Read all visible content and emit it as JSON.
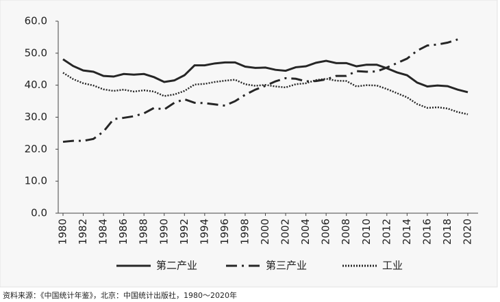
{
  "chart_data": {
    "type": "line",
    "x": [
      1980,
      1981,
      1982,
      1983,
      1984,
      1985,
      1986,
      1987,
      1988,
      1989,
      1990,
      1991,
      1992,
      1993,
      1994,
      1995,
      1996,
      1997,
      1998,
      1999,
      2000,
      2001,
      2002,
      2003,
      2004,
      2005,
      2006,
      2007,
      2008,
      2009,
      2010,
      2011,
      2012,
      2013,
      2014,
      2015,
      2016,
      2017,
      2018,
      2019,
      2020
    ],
    "xlim": [
      1980,
      2020
    ],
    "xticks": [
      1980,
      1982,
      1984,
      1986,
      1988,
      1990,
      1992,
      1994,
      1996,
      1998,
      2000,
      2002,
      2004,
      2006,
      2008,
      2010,
      2012,
      2014,
      2016,
      2018,
      2020
    ],
    "ylim": [
      0,
      60
    ],
    "yticks": [
      {
        "value": 0,
        "label": "0.0"
      },
      {
        "value": 10,
        "label": "10.0"
      },
      {
        "value": 20,
        "label": "20.0"
      },
      {
        "value": 30,
        "label": "30.0"
      },
      {
        "value": 40,
        "label": "40.0"
      },
      {
        "value": 50,
        "label": "50.0"
      },
      {
        "value": 60,
        "label": "60.0"
      }
    ],
    "grid": false,
    "legend": "bottom",
    "series": [
      {
        "name": "第二产业",
        "color": "#262626",
        "dash": "solid",
        "values": [
          48.1,
          46.0,
          44.6,
          44.2,
          42.9,
          42.7,
          43.5,
          43.3,
          43.5,
          42.5,
          41.0,
          41.5,
          43.1,
          46.2,
          46.2,
          46.8,
          47.1,
          47.1,
          45.8,
          45.4,
          45.5,
          44.8,
          44.5,
          45.6,
          45.9,
          47.0,
          47.6,
          46.9,
          46.9,
          45.9,
          46.4,
          46.4,
          45.3,
          44.0,
          43.1,
          40.8,
          39.6,
          39.9,
          39.7,
          38.6,
          37.8
        ]
      },
      {
        "name": "第三产业",
        "color": "#262626",
        "dash": "dashdot",
        "values": [
          22.3,
          22.6,
          22.6,
          23.2,
          25.5,
          29.4,
          29.8,
          30.3,
          31.2,
          32.9,
          32.4,
          34.5,
          35.6,
          34.5,
          34.4,
          34.0,
          33.6,
          35.0,
          37.0,
          38.6,
          39.8,
          41.2,
          42.2,
          42.0,
          41.2,
          41.3,
          41.8,
          42.9,
          42.9,
          44.4,
          44.2,
          44.3,
          45.5,
          46.9,
          48.3,
          50.8,
          52.4,
          52.7,
          53.3,
          54.3,
          null
        ]
      },
      {
        "name": "工业",
        "color": "#262626",
        "dash": "dotted",
        "values": [
          43.9,
          41.9,
          40.6,
          39.9,
          38.7,
          38.2,
          38.6,
          38.0,
          38.4,
          38.0,
          36.6,
          37.1,
          38.2,
          40.2,
          40.4,
          41.0,
          41.4,
          41.7,
          40.3,
          39.8,
          40.1,
          39.6,
          39.3,
          40.3,
          40.6,
          41.6,
          42.0,
          41.4,
          41.3,
          39.6,
          40.0,
          39.9,
          38.8,
          37.5,
          36.2,
          34.1,
          32.9,
          33.1,
          32.7,
          31.6,
          30.9
        ]
      }
    ],
    "source": "资料来源：《中国统计年鉴》，北京：中国统计出版社，1980～2020年"
  }
}
